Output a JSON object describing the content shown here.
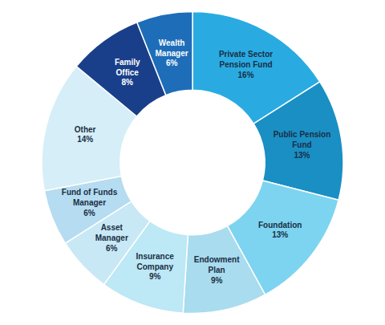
{
  "chart_data": {
    "type": "donut",
    "categories": [
      "Private Sector\nPension Fund",
      "Public Pension\nFund",
      "Foundation",
      "Endowment\nPlan",
      "Insurance\nCompany",
      "Asset\nManager",
      "Fund of Funds\nManager",
      "Other",
      "Family\nOffice",
      "Wealth\nManager"
    ],
    "values": [
      16,
      13,
      13,
      9,
      9,
      6,
      6,
      14,
      8,
      6
    ],
    "value_labels": [
      "16%",
      "13%",
      "13%",
      "9%",
      "9%",
      "6%",
      "6%",
      "14%",
      "8%",
      "6%"
    ],
    "colors": [
      "#29ABE2",
      "#1A8FC4",
      "#7DD4F0",
      "#A8DCEE",
      "#BDE8F5",
      "#C8E8F5",
      "#B5DCF0",
      "#D6EEF8",
      "#1A3F8A",
      "#1E6DB8"
    ],
    "data_labels": true
  }
}
